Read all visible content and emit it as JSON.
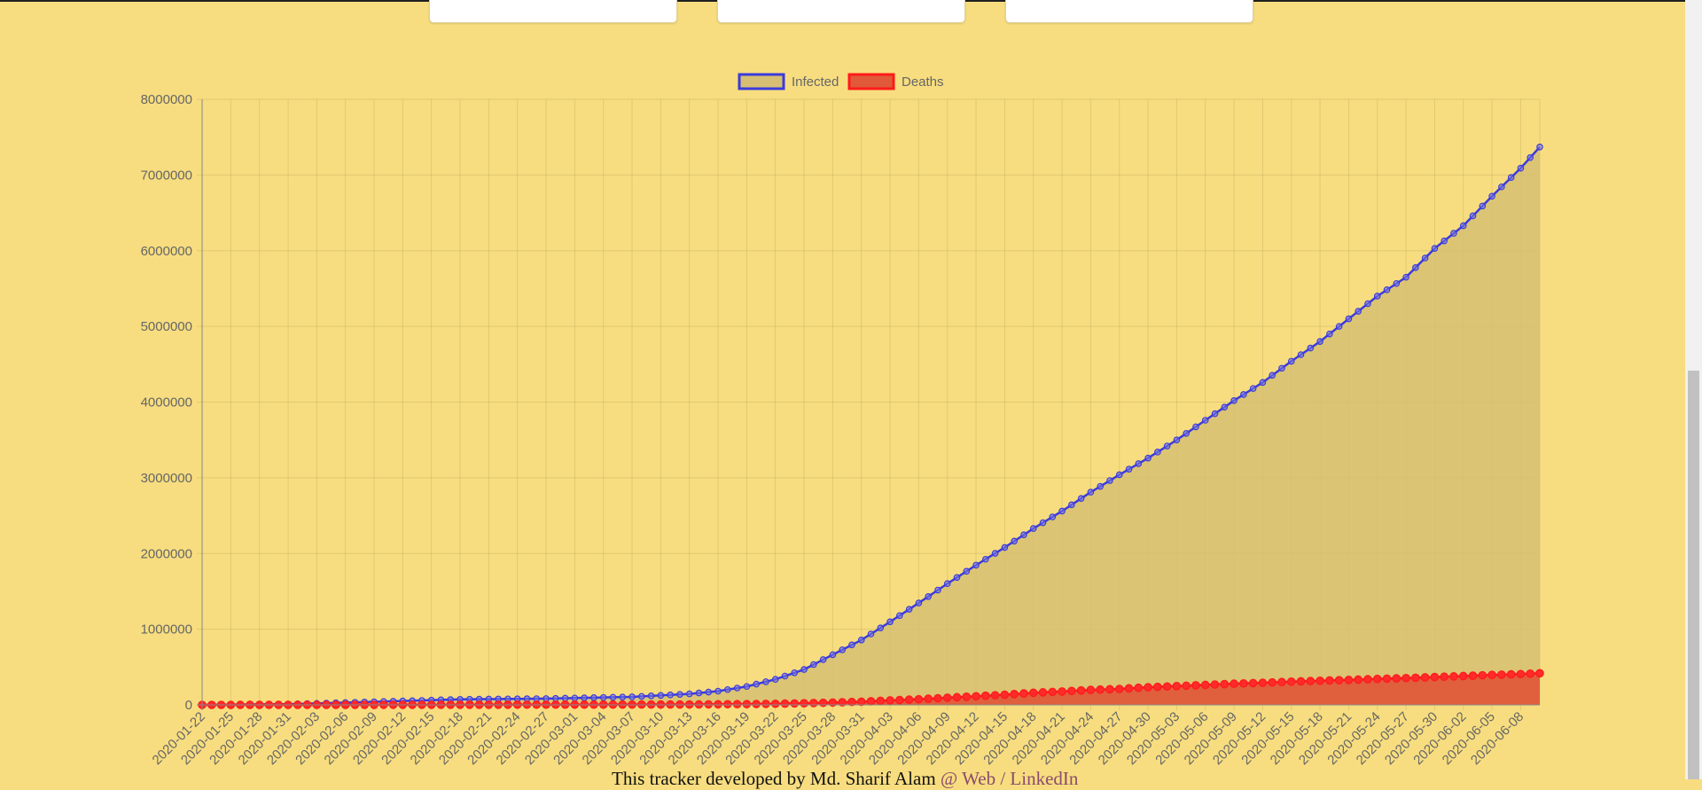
{
  "footer": {
    "text": "This tracker developed by Md. Sharif Alam ",
    "link": "@ Web / LinkedIn"
  },
  "colors": {
    "page_bg": "#f7dd7f",
    "infected_line": "#3b3bdc",
    "infected_fill": "#d6bf72",
    "deaths_line": "#ff1a1a",
    "deaths_fill": "#e05a3a"
  },
  "chart_data": {
    "type": "area",
    "legend_position": "top-center",
    "grid": true,
    "ylim": [
      0,
      8000000
    ],
    "y_ticks": [
      "0",
      "1000000",
      "2000000",
      "3000000",
      "4000000",
      "5000000",
      "6000000",
      "7000000",
      "8000000"
    ],
    "x_start": "2020-01-22",
    "x_end": "2020-06-10",
    "x_tick_labels": [
      "2020-01-22",
      "2020-01-25",
      "2020-01-28",
      "2020-01-31",
      "2020-02-03",
      "2020-02-06",
      "2020-02-09",
      "2020-02-12",
      "2020-02-15",
      "2020-02-18",
      "2020-02-21",
      "2020-02-24",
      "2020-02-27",
      "2020-03-01",
      "2020-03-04",
      "2020-03-07",
      "2020-03-10",
      "2020-03-13",
      "2020-03-16",
      "2020-03-19",
      "2020-03-22",
      "2020-03-25",
      "2020-03-28",
      "2020-03-31",
      "2020-04-03",
      "2020-04-06",
      "2020-04-09",
      "2020-04-12",
      "2020-04-15",
      "2020-04-18",
      "2020-04-21",
      "2020-04-24",
      "2020-04-27",
      "2020-04-30",
      "2020-05-03",
      "2020-05-06",
      "2020-05-09",
      "2020-05-12",
      "2020-05-15",
      "2020-05-18",
      "2020-05-21",
      "2020-05-24",
      "2020-05-27",
      "2020-05-30",
      "2020-06-02",
      "2020-06-05",
      "2020-06-08"
    ],
    "series": [
      {
        "name": "Infected",
        "values_at": {
          "2020-01-22": 557,
          "2020-01-31": 9900,
          "2020-02-09": 40500,
          "2020-02-18": 73300,
          "2020-02-27": 83000,
          "2020-03-07": 105800,
          "2020-03-13": 145100,
          "2020-03-16": 181500,
          "2020-03-19": 243000,
          "2020-03-22": 337000,
          "2020-03-25": 468000,
          "2020-03-28": 663000,
          "2020-03-31": 857000,
          "2020-04-03": 1097000,
          "2020-04-06": 1346000,
          "2020-04-09": 1602000,
          "2020-04-12": 1846000,
          "2020-04-15": 2080000,
          "2020-04-18": 2330000,
          "2020-04-21": 2560000,
          "2020-04-24": 2810000,
          "2020-04-27": 3040000,
          "2020-04-30": 3260000,
          "2020-05-03": 3500000,
          "2020-05-06": 3760000,
          "2020-05-09": 4020000,
          "2020-05-12": 4260000,
          "2020-05-15": 4540000,
          "2020-05-18": 4800000,
          "2020-05-21": 5100000,
          "2020-05-24": 5400000,
          "2020-05-27": 5650000,
          "2020-05-30": 6030000,
          "2020-06-02": 6330000,
          "2020-06-05": 6720000,
          "2020-06-08": 7090000,
          "2020-06-10": 7370000
        }
      },
      {
        "name": "Deaths",
        "values_at": {
          "2020-01-22": 17,
          "2020-02-09": 900,
          "2020-02-27": 2800,
          "2020-03-13": 5400,
          "2020-03-19": 9900,
          "2020-03-22": 14600,
          "2020-03-25": 21100,
          "2020-03-28": 30800,
          "2020-03-31": 42100,
          "2020-04-03": 59000,
          "2020-04-06": 74000,
          "2020-04-09": 95000,
          "2020-04-12": 114000,
          "2020-04-15": 134000,
          "2020-04-18": 160000,
          "2020-04-21": 177000,
          "2020-04-24": 198000,
          "2020-04-27": 211000,
          "2020-04-30": 233000,
          "2020-05-03": 248000,
          "2020-05-06": 264000,
          "2020-05-09": 280000,
          "2020-05-12": 292000,
          "2020-05-15": 307000,
          "2020-05-18": 319000,
          "2020-05-21": 330000,
          "2020-05-24": 343000,
          "2020-05-27": 354000,
          "2020-05-30": 368000,
          "2020-06-02": 381000,
          "2020-06-05": 396000,
          "2020-06-08": 407000,
          "2020-06-10": 418000
        }
      }
    ]
  }
}
